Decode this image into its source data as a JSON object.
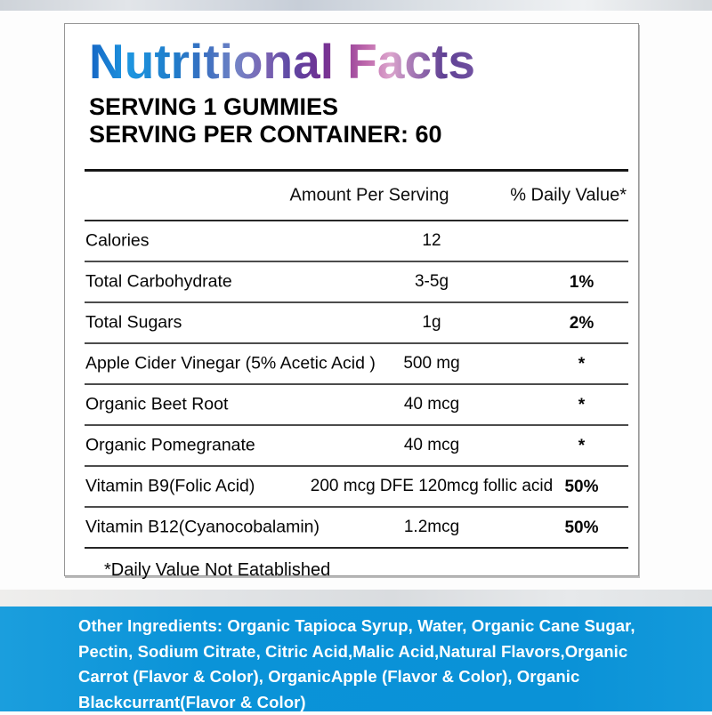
{
  "label": {
    "title": "Nutritional Facts",
    "serving_line1": "SERVING 1 GUMMIES",
    "serving_line2": "SERVING PER CONTAINER: 60",
    "table": {
      "col_amount": "Amount Per Serving",
      "col_dv": "% Daily Value*",
      "rows": [
        {
          "label": "Calories",
          "amount": "12",
          "dv": ""
        },
        {
          "label": "Total Carbohydrate",
          "amount": "3-5g",
          "dv": "1%"
        },
        {
          "label": "Total Sugars",
          "amount": "1g",
          "dv": "2%"
        },
        {
          "label": "Apple Cider Vinegar (5% Acetic Acid )",
          "amount": "500 mg",
          "dv": "*"
        },
        {
          "label": "Organic Beet Root",
          "amount": "40 mcg",
          "dv": "*"
        },
        {
          "label": "Organic Pomegranate",
          "amount": "40 mcg",
          "dv": "*"
        },
        {
          "label": "Vitamin B9(Folic Acid)",
          "amount": "200 mcg DFE 120mcg follic acid",
          "dv": "50%"
        },
        {
          "label": "Vitamin B12(Cyanocobalamin)",
          "amount": "1.2mcg",
          "dv": "50%"
        }
      ],
      "footnote": "*Daily Value Not Eatablished"
    },
    "ingredients": {
      "lines": [
        "Other Ingredients: Organic Tapioca Syrup, Water, Organic Cane Sugar,",
        "Pectin, Sodium Citrate, Citric Acid,Malic Acid,Natural Flavors,Organic",
        "Carrot (Flavor & Color), OrganicApple (Flavor & Color), Organic",
        "Blackcurrant(Flavor & Color)"
      ]
    },
    "colors": {
      "accent_blue": "#0a93d8",
      "title_gradient_blue": "#1e96e0",
      "title_gradient_purple": "#6f3093",
      "title_gradient_pink": "#dca5cd"
    }
  }
}
